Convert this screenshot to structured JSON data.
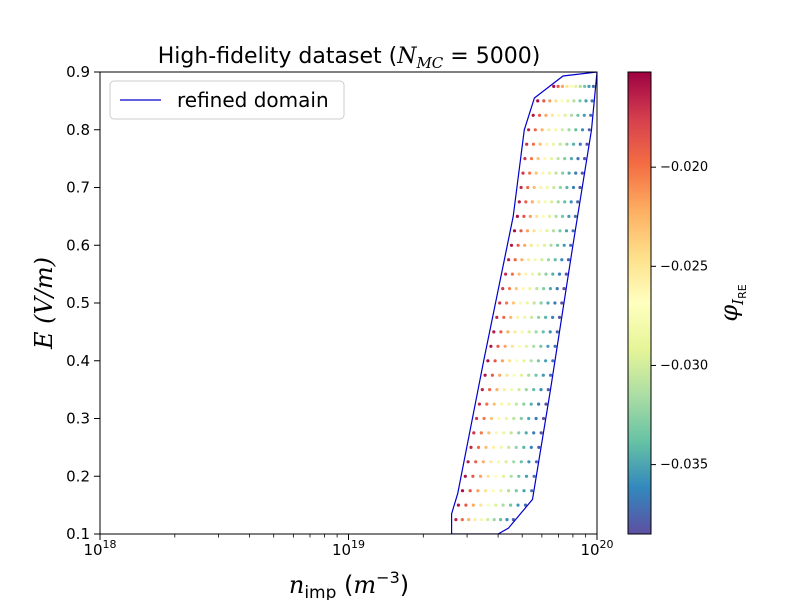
{
  "chart_data": {
    "type": "scatter",
    "title": {
      "prefix": "High-fidelity dataset (",
      "symbol": "N",
      "subscript": "MC",
      "suffix": " = 5000)"
    },
    "xlabel": {
      "symbol": "n",
      "subscript": "imp",
      "unit_open": " (",
      "unit_base": "m",
      "unit_exp": "−3",
      "unit_close": ")"
    },
    "ylabel": {
      "text": "E (V/m)"
    },
    "xscale": "log",
    "xlim": [
      1e+18,
      1e+20
    ],
    "ylim": [
      0.1,
      0.9
    ],
    "x_ticks": [
      {
        "value": 1e+18,
        "base": "10",
        "exp": "18"
      },
      {
        "value": 1e+19,
        "base": "10",
        "exp": "19"
      },
      {
        "value": 1e+20,
        "base": "10",
        "exp": "20"
      }
    ],
    "y_ticks": [
      "0.1",
      "0.2",
      "0.3",
      "0.4",
      "0.5",
      "0.6",
      "0.7",
      "0.8",
      "0.9"
    ],
    "legend": {
      "location": "upper-left",
      "entries": [
        {
          "label": "refined domain",
          "color": "#0000cc"
        }
      ]
    },
    "colorbar": {
      "label_symbol": "φ",
      "label_sub": "I",
      "label_subsub": "RE",
      "range": [
        -0.0385,
        -0.0152
      ],
      "ticks": [
        "−0.020",
        "−0.025",
        "−0.030",
        "−0.035"
      ],
      "tick_values": [
        -0.02,
        -0.025,
        -0.03,
        -0.035
      ],
      "colormap": "Spectral"
    },
    "domain_polygon": {
      "name": "refined domain",
      "color": "#0000cc",
      "points": [
        [
          2.6e+19,
          0.1
        ],
        [
          4e+19,
          0.1
        ],
        [
          4.4e+19,
          0.11
        ],
        [
          5.5e+19,
          0.16
        ],
        [
          6.5e+19,
          0.35
        ],
        [
          8e+19,
          0.6
        ],
        [
          9.5e+19,
          0.8
        ],
        [
          1e+20,
          0.9
        ],
        [
          7.3e+19,
          0.893
        ],
        [
          5.6e+19,
          0.855
        ],
        [
          5.1e+19,
          0.8
        ],
        [
          4.6e+19,
          0.65
        ],
        [
          3.5e+19,
          0.4
        ],
        [
          2.75e+19,
          0.17
        ],
        [
          2.6e+19,
          0.135
        ],
        [
          2.6e+19,
          0.1
        ]
      ]
    },
    "scatter_grid": {
      "name": "high-fidelity samples",
      "E_values": [
        0.125,
        0.15,
        0.175,
        0.2,
        0.225,
        0.25,
        0.275,
        0.3,
        0.325,
        0.35,
        0.375,
        0.4,
        0.425,
        0.45,
        0.475,
        0.5,
        0.525,
        0.55,
        0.575,
        0.6,
        0.625,
        0.65,
        0.675,
        0.7,
        0.725,
        0.75,
        0.775,
        0.8,
        0.825,
        0.85,
        0.875
      ],
      "points_per_row": 10,
      "phi_profile": [
        -0.0165,
        -0.0195,
        -0.0225,
        -0.0255,
        -0.028,
        -0.03,
        -0.032,
        -0.034,
        -0.036,
        -0.0378
      ]
    }
  }
}
